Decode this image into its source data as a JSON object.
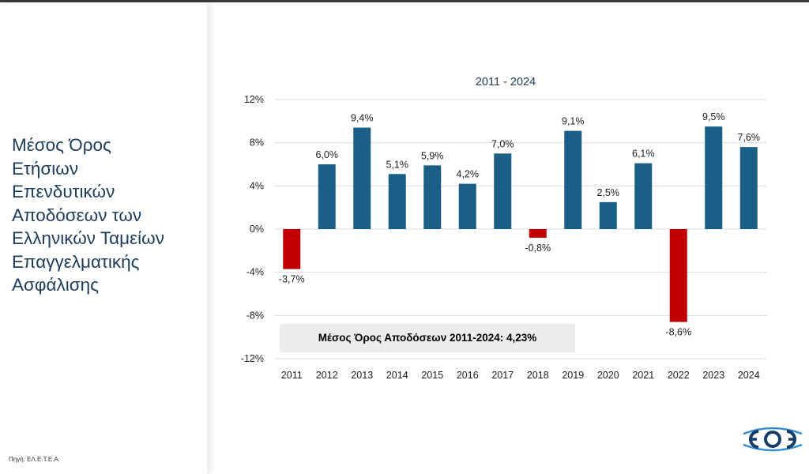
{
  "side_title": [
    "Μέσος Όρος",
    "Ετήσιων",
    "Επενδυτικών",
    "Αποδόσεων των",
    "Ελληνικών Ταμείων",
    "Επαγγελματικής",
    "Ασφάλισης"
  ],
  "source": "Πηγή: ΕΛ.Ε.Τ.Ε.Α.",
  "colors": {
    "positive": "#1a5f86",
    "negative": "#c00000",
    "text_dark": "#1d3c5a"
  },
  "logo_icon": "etea-logo-icon",
  "chart_data": {
    "type": "bar",
    "title": "2011 - 2024",
    "categories": [
      "2011",
      "2012",
      "2013",
      "2014",
      "2015",
      "2016",
      "2017",
      "2018",
      "2019",
      "2020",
      "2021",
      "2022",
      "2023",
      "2024"
    ],
    "values": [
      -3.7,
      6.0,
      9.4,
      5.1,
      5.9,
      4.2,
      7.0,
      -0.8,
      9.1,
      2.5,
      6.1,
      -8.6,
      9.5,
      7.6
    ],
    "value_labels": [
      "-3,7%",
      "6,0%",
      "9,4%",
      "5,1%",
      "5,9%",
      "4,2%",
      "7,0%",
      "-0,8%",
      "9,1%",
      "2,5%",
      "6,1%",
      "-8,6%",
      "9,5%",
      "7,6%"
    ],
    "yticks": [
      12,
      8,
      4,
      0,
      -4,
      -8,
      -12
    ],
    "ytick_labels": [
      "12%",
      "8%",
      "4%",
      "0%",
      "-4%",
      "-8%",
      "-12%"
    ],
    "ylim": [
      -12,
      12
    ],
    "grid": true,
    "annotation": "Μέσος Όρος Αποδόσεων 2011-2024: 4,23%"
  }
}
